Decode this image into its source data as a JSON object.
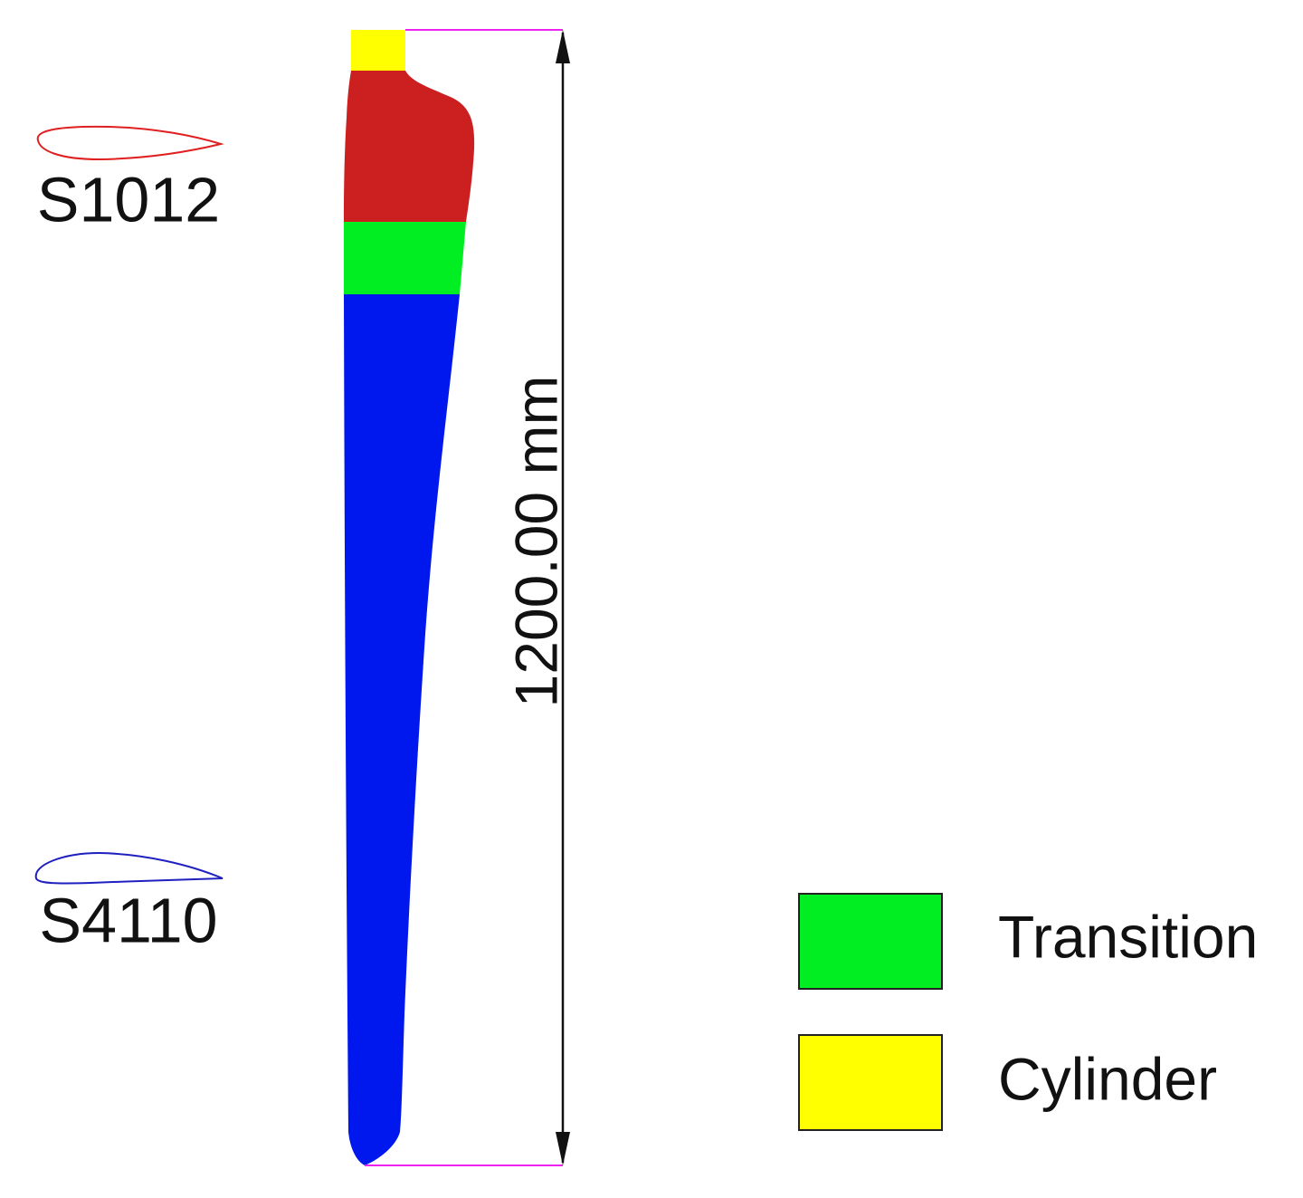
{
  "airfoils": [
    {
      "label": "S1012"
    },
    {
      "label": "S4110"
    }
  ],
  "dimension": {
    "label": "1200.00 mm"
  },
  "legend": [
    {
      "label": "Transition"
    },
    {
      "label": "Cylinder"
    }
  ]
}
